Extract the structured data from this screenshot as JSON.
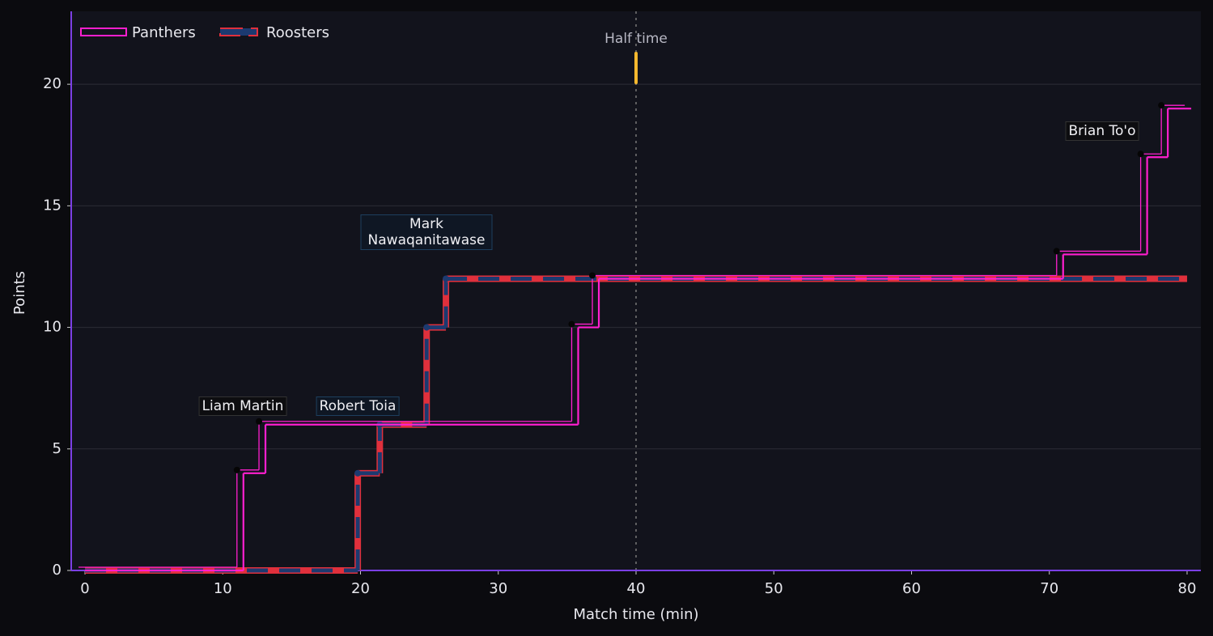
{
  "chart_data": {
    "type": "step",
    "x_label": "Match time (min)",
    "y_label": "Points",
    "xlim": [
      -1,
      81
    ],
    "ylim": [
      0,
      23
    ],
    "xticks": [
      0,
      10,
      20,
      30,
      40,
      50,
      60,
      70,
      80
    ],
    "yticks": [
      0,
      5,
      10,
      15,
      20
    ],
    "grid": true,
    "legend": "upper left",
    "series": [
      {
        "name": "Panthers",
        "color": "#ff1fcf",
        "x": [
          0,
          11.5,
          13.1,
          35.8,
          37.3,
          71,
          77.1,
          78.6,
          80.3
        ],
        "values": [
          0,
          4,
          6,
          10,
          12,
          13,
          17,
          19,
          19
        ]
      },
      {
        "name": "Roosters",
        "color": "#1c3a70",
        "edge_color": "#e0303c",
        "x": [
          0,
          19.8,
          21.4,
          24.8,
          26.2,
          80
        ],
        "values": [
          0,
          4,
          6,
          10,
          12,
          12
        ]
      }
    ],
    "annotations": [
      "Liam Martin",
      "Robert Toia",
      "Mark Nawaqanitawase",
      "Brian To'o"
    ],
    "half_time": {
      "x": 40,
      "label": "Half time"
    }
  }
}
